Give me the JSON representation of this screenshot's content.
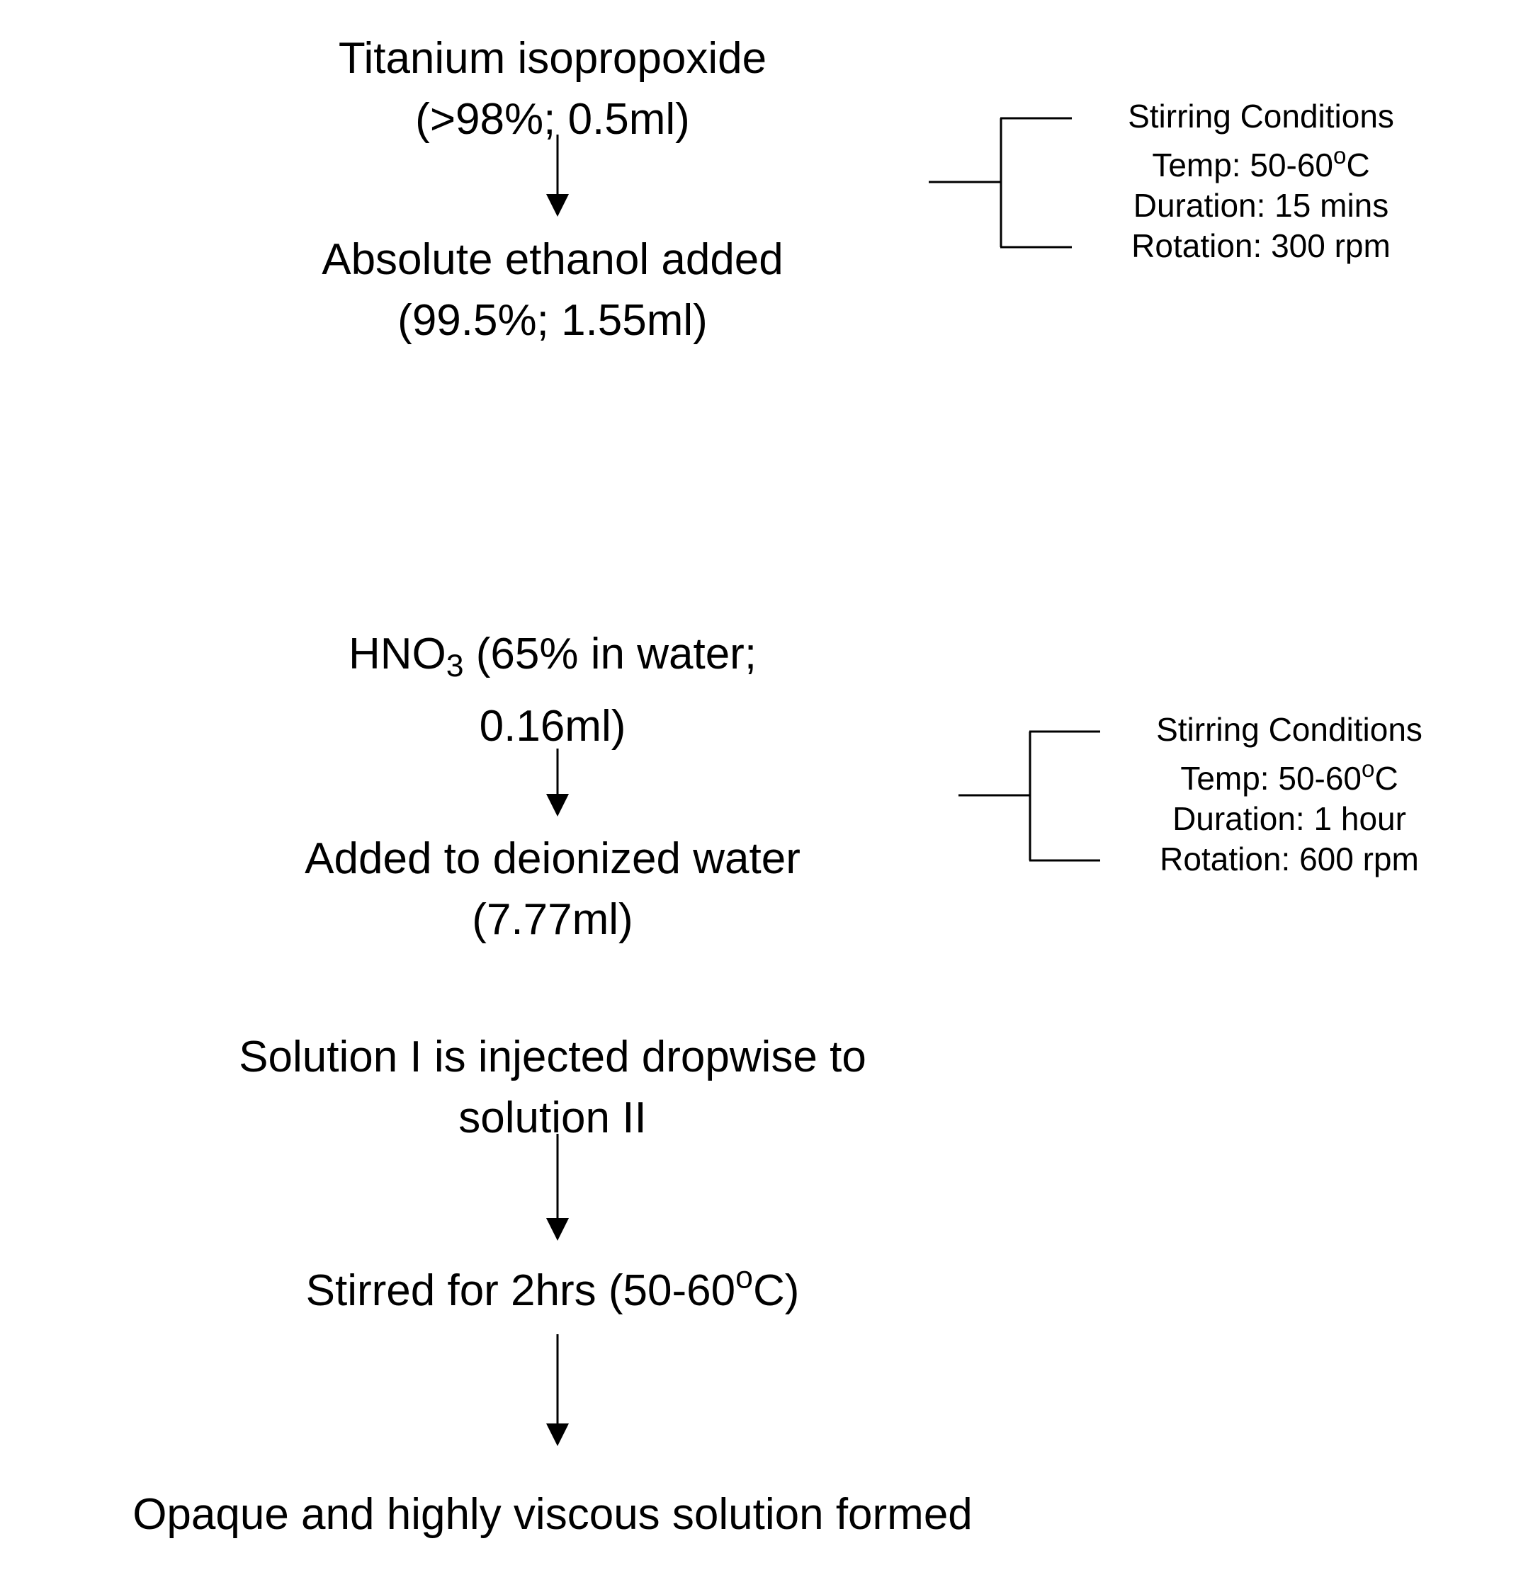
{
  "steps": {
    "s1": {
      "line1": "Titanium isopropoxide",
      "line2": "(>98%; 0.5ml)"
    },
    "s2": {
      "line1": "Absolute ethanol added",
      "line2": "(99.5%; 1.55ml)"
    },
    "s3": {
      "formula_main": "HNO",
      "formula_sub": "3",
      "line1_rest": " (65% in water;",
      "line2": "0.16ml)"
    },
    "s4": {
      "line1": "Added to deionized water",
      "line2": "(7.77ml)"
    },
    "s5": {
      "line1": "Solution I is injected dropwise to",
      "line2": "solution II"
    },
    "s6": {
      "prefix": "Stirred for 2hrs (50-60",
      "degree": "o",
      "suffix": "C)"
    },
    "s7": {
      "line1": "Opaque and highly viscous solution formed"
    }
  },
  "conditions": [
    {
      "title": "Stirring Conditions",
      "temp_prefix": "Temp: 50-60",
      "temp_degree": "o",
      "temp_suffix": "C",
      "duration": "Duration: 15 mins",
      "rotation": "Rotation: 300 rpm"
    },
    {
      "title": "Stirring Conditions",
      "temp_prefix": "Temp: 50-60",
      "temp_degree": "o",
      "temp_suffix": "C",
      "duration": "Duration: 1 hour",
      "rotation": "Rotation: 600 rpm"
    }
  ]
}
